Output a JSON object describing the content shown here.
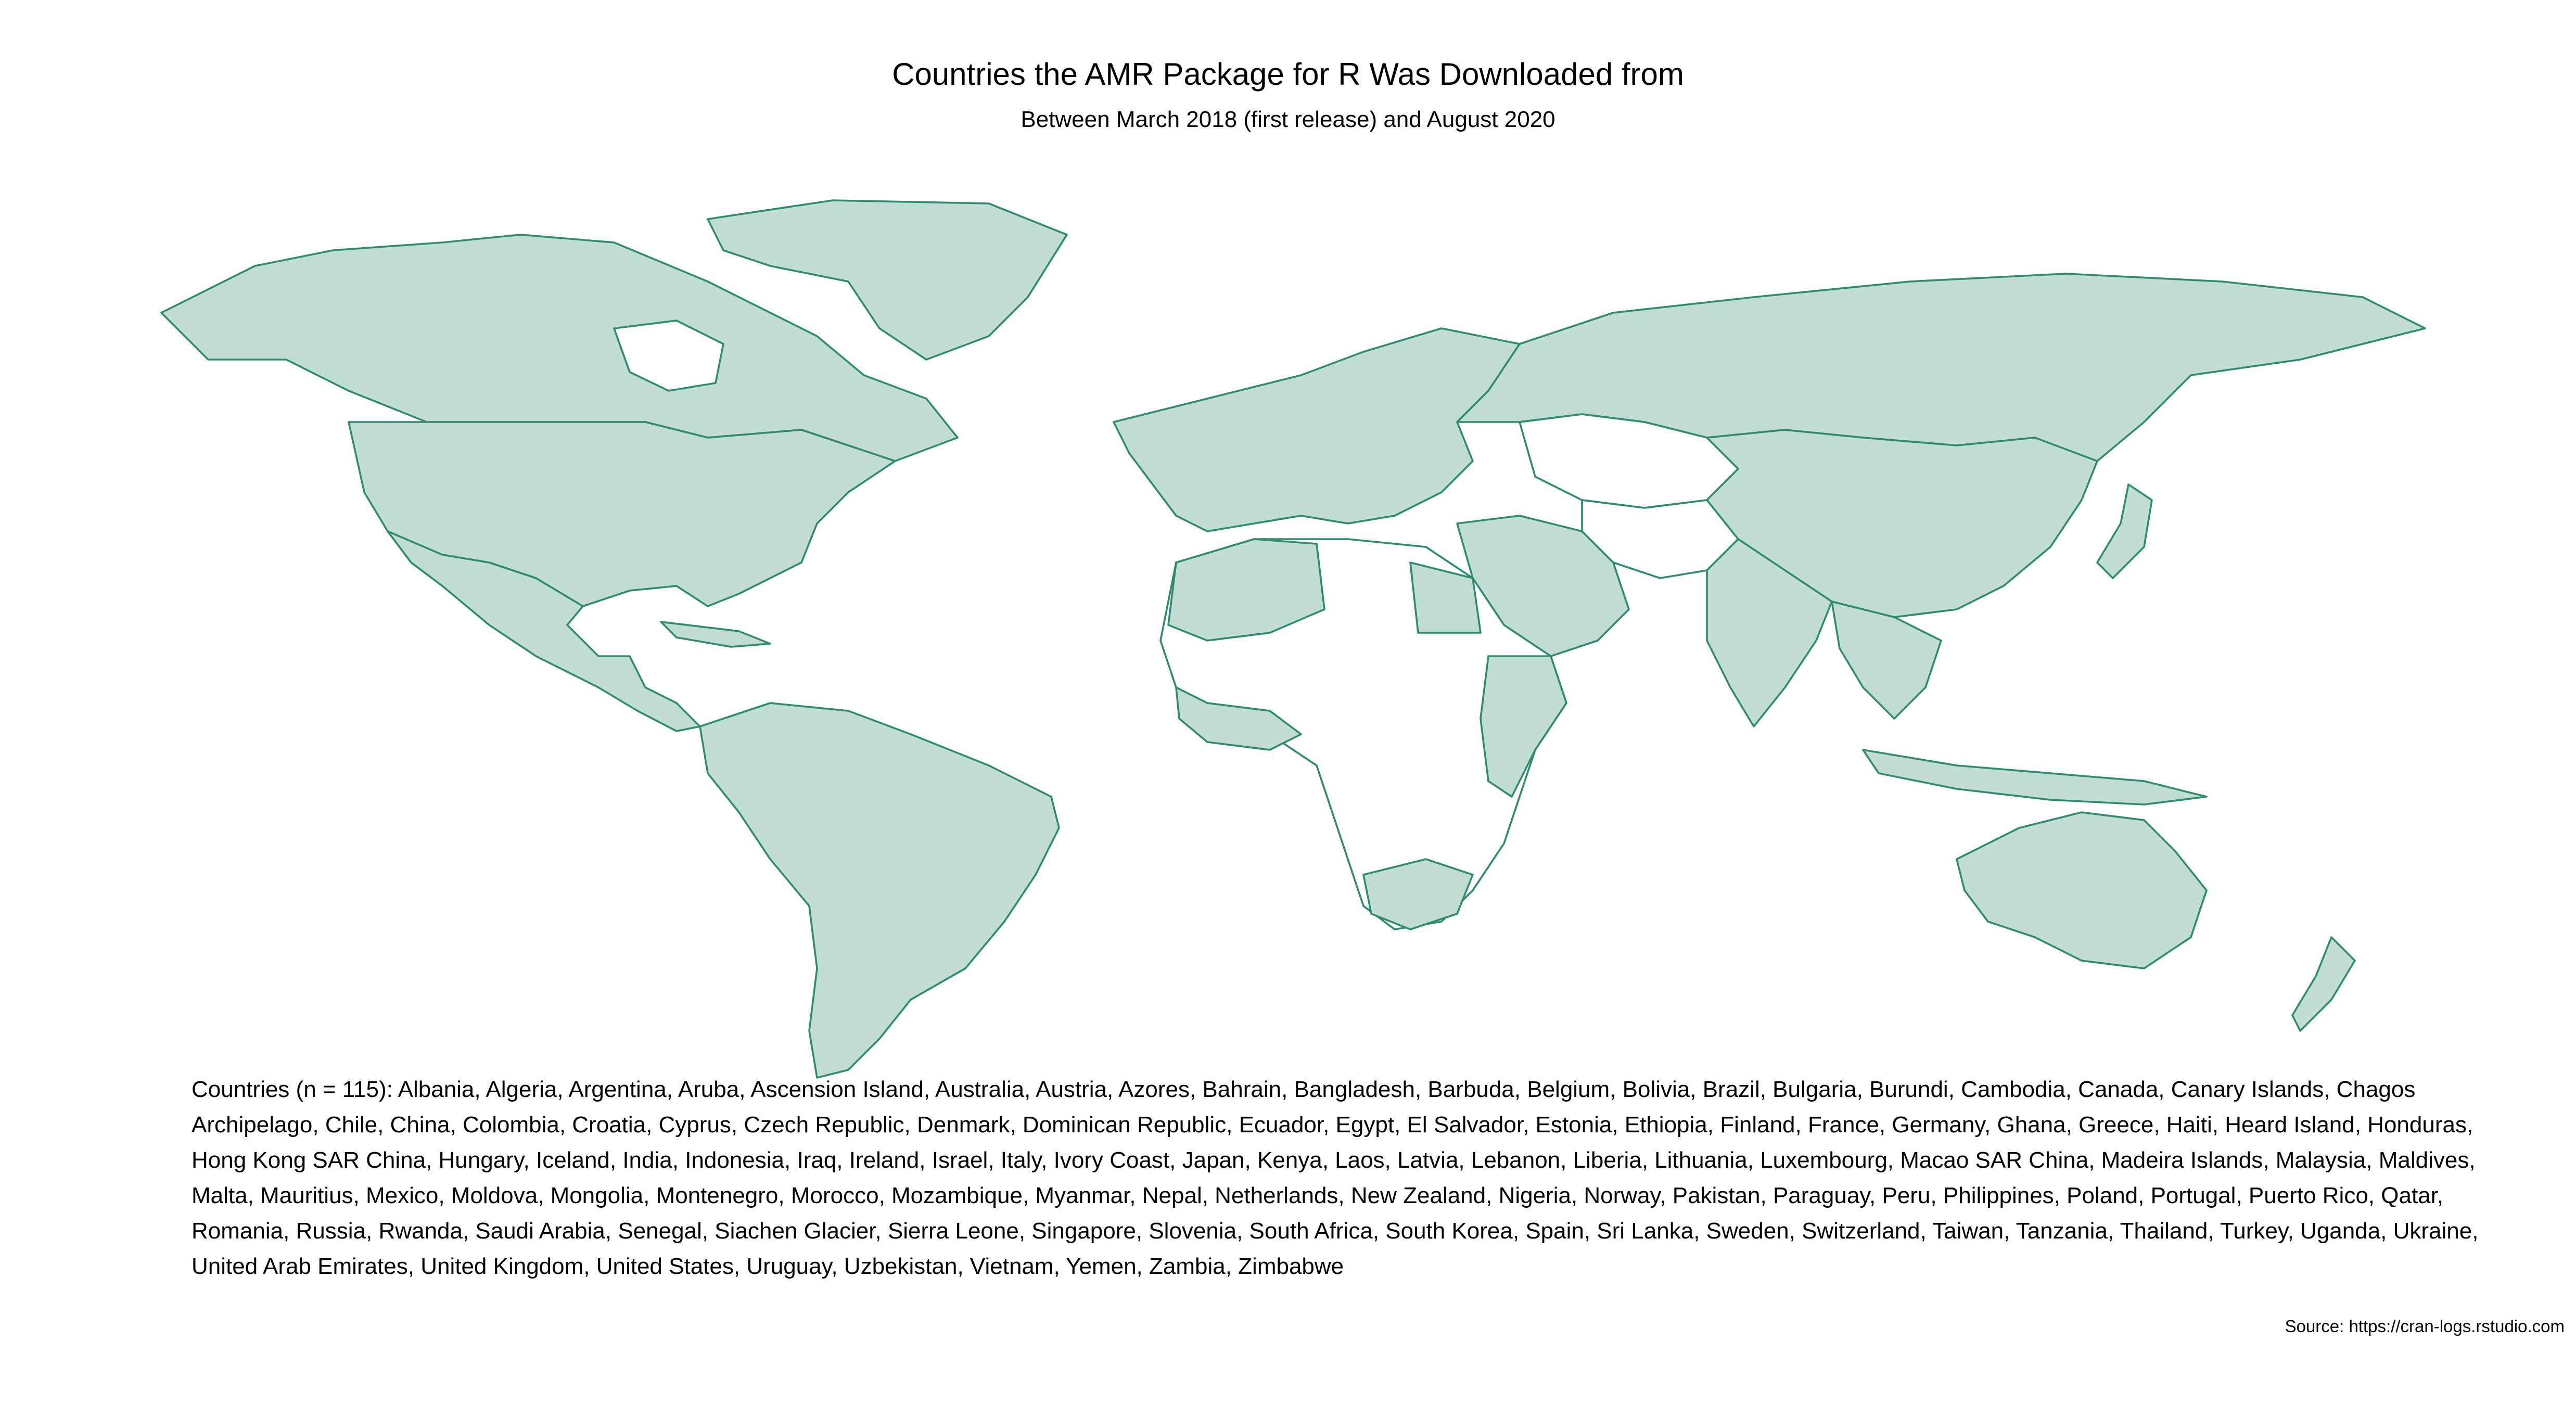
{
  "title": "Countries the AMR Package for R Was Downloaded from",
  "subtitle": "Between March 2018 (first release) and August 2020",
  "caption": "Countries (n = 115): Albania, Algeria, Argentina, Aruba, Ascension Island, Australia, Austria, Azores, Bahrain, Bangladesh, Barbuda, Belgium, Bolivia, Brazil, Bulgaria, Burundi, Cambodia, Canada, Canary Islands, Chagos Archipelago, Chile, China, Colombia, Croatia, Cyprus, Czech Republic, Denmark, Dominican Republic, Ecuador, Egypt, El Salvador, Estonia, Ethiopia, Finland, France, Germany, Ghana, Greece, Haiti, Heard Island, Honduras, Hong Kong SAR China, Hungary, Iceland, India, Indonesia, Iraq, Ireland, Israel, Italy, Ivory Coast, Japan, Kenya, Laos, Latvia, Lebanon, Liberia, Lithuania, Luxembourg, Macao SAR China, Madeira Islands, Malaysia, Maldives, Malta, Mauritius, Mexico, Moldova, Mongolia, Montenegro, Morocco, Mozambique, Myanmar, Nepal, Netherlands, New Zealand, Nigeria, Norway, Pakistan, Paraguay, Peru, Philippines, Poland, Portugal, Puerto Rico, Qatar, Romania, Russia, Rwanda, Saudi Arabia, Senegal, Siachen Glacier, Sierra Leone, Singapore, Slovenia, South Africa, South Korea, Spain, Sri Lanka, Sweden, Switzerland, Taiwan, Tanzania, Thailand, Turkey, Uganda, Ukraine, United Arab Emirates, United Kingdom, United States, Uruguay, Uzbekistan, Vietnam, Yemen, Zambia, Zimbabwe",
  "source": "Source: https://cran-logs.rstudio.com",
  "colors": {
    "downloaded_fill": "#c2ddd5",
    "border": "#2e8b6e",
    "not_downloaded_fill": "#ffffff"
  },
  "map": {
    "projection": "equirectangular-like world map",
    "highlighted_countries_count": 115
  }
}
